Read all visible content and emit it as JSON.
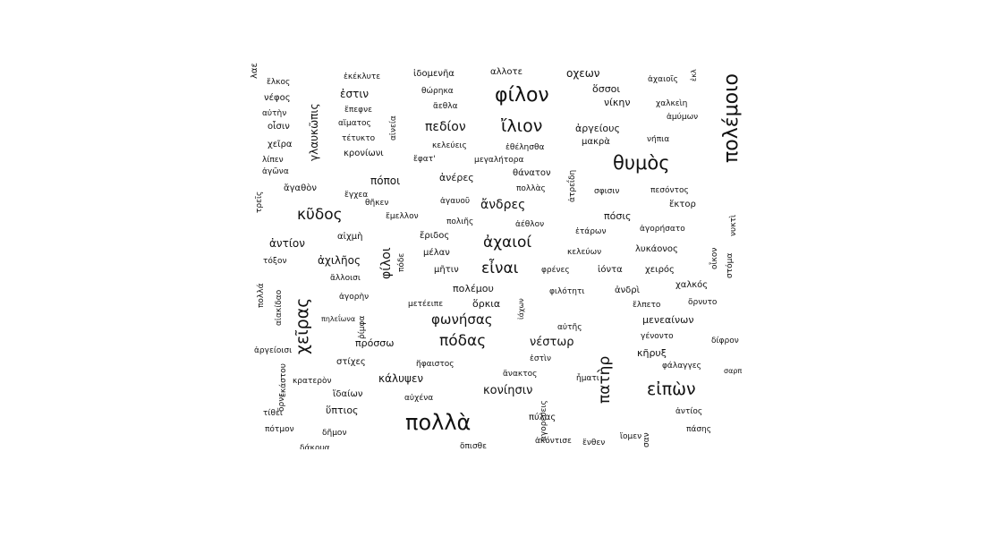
{
  "cloud": {
    "words": [
      {
        "text": "πολέμοιο",
        "vertical": true
      },
      {
        "text": "φίλον",
        "vertical": false
      },
      {
        "text": "ἴλιον",
        "vertical": false
      },
      {
        "text": "θυμὸς",
        "vertical": false
      },
      {
        "text": "κῦδος",
        "vertical": false
      },
      {
        "text": "ἀχαιοί",
        "vertical": false
      },
      {
        "text": "εἶναι",
        "vertical": false
      },
      {
        "text": "ἄνδρες",
        "vertical": false
      },
      {
        "text": "πεδίον",
        "vertical": false
      },
      {
        "text": "πόδας",
        "vertical": false
      },
      {
        "text": "φωνήσας",
        "vertical": false
      },
      {
        "text": "νέστωρ",
        "vertical": false
      },
      {
        "text": "χεῖρας",
        "vertical": true
      },
      {
        "text": "πολλὰ",
        "vertical": false
      },
      {
        "text": "εἰπὼν",
        "vertical": false
      },
      {
        "text": "πατὴρ",
        "vertical": true
      },
      {
        "text": "ἔλκος",
        "vertical": false
      },
      {
        "text": "νέφος",
        "vertical": false
      },
      {
        "text": "αὐτὴν",
        "vertical": false
      },
      {
        "text": "οἶσιν",
        "vertical": false
      },
      {
        "text": "χεῖρα",
        "vertical": false
      },
      {
        "text": "λίπεν",
        "vertical": false
      },
      {
        "text": "ἀγῶνα",
        "vertical": false
      },
      {
        "text": "γλαυκῶπις",
        "vertical": true
      },
      {
        "text": "ἐκέκλυτε",
        "vertical": false
      },
      {
        "text": "ἐστιν",
        "vertical": false
      },
      {
        "text": "ἔπεφνε",
        "vertical": false
      },
      {
        "text": "αἵματος",
        "vertical": false
      },
      {
        "text": "τέτυκτο",
        "vertical": false
      },
      {
        "text": "κρονίωνι",
        "vertical": false
      },
      {
        "text": "αἰνεία",
        "vertical": true
      },
      {
        "text": "ἰδομενῆα",
        "vertical": false
      },
      {
        "text": "θώρηκα",
        "vertical": false
      },
      {
        "text": "ἄεθλα",
        "vertical": false
      },
      {
        "text": "κελεύεις",
        "vertical": false
      },
      {
        "text": "ἔφατ'",
        "vertical": false
      },
      {
        "text": "αλλοτε",
        "vertical": false
      },
      {
        "text": "ἐθέλησθα",
        "vertical": false
      },
      {
        "text": "μεγαλήτορα",
        "vertical": false
      },
      {
        "text": "οχεων",
        "vertical": false
      },
      {
        "text": "ὅσσοι",
        "vertical": false
      },
      {
        "text": "νίκην",
        "vertical": false
      },
      {
        "text": "ἀργείους",
        "vertical": false
      },
      {
        "text": "μακρὰ",
        "vertical": false
      },
      {
        "text": "ἀχαιοῖς",
        "vertical": false
      },
      {
        "text": "ἐκλ",
        "vertical": true
      },
      {
        "text": "χαλκεὶη",
        "vertical": false
      },
      {
        "text": "ἀμύμων",
        "vertical": false
      },
      {
        "text": "νήπια",
        "vertical": false
      },
      {
        "text": "τρεῖς",
        "vertical": true
      },
      {
        "text": "ἄγαθὸν",
        "vertical": false
      },
      {
        "text": "πόποι",
        "vertical": false
      },
      {
        "text": "ἔγχεα",
        "vertical": false
      },
      {
        "text": "θῆκεν",
        "vertical": false
      },
      {
        "text": "ἔμελλον",
        "vertical": false
      },
      {
        "text": "ἀνέρες",
        "vertical": false
      },
      {
        "text": "ἀγαυοῦ",
        "vertical": false
      },
      {
        "text": "πολιῆς",
        "vertical": false
      },
      {
        "text": "θάνατον",
        "vertical": false
      },
      {
        "text": "πολλὰς",
        "vertical": false
      },
      {
        "text": "ἀτρεΐδη",
        "vertical": true
      },
      {
        "text": "σφισιν",
        "vertical": false
      },
      {
        "text": "πεσόντος",
        "vertical": false
      },
      {
        "text": "ἕκτορ",
        "vertical": false
      },
      {
        "text": "ἀέθλον",
        "vertical": false
      },
      {
        "text": "πόσις",
        "vertical": false
      },
      {
        "text": "νυκτὶ",
        "vertical": true
      },
      {
        "text": "ἀντίον",
        "vertical": false
      },
      {
        "text": "αἰχμὴ",
        "vertical": false
      },
      {
        "text": "ἔριδος",
        "vertical": false
      },
      {
        "text": "ἑτάρων",
        "vertical": false
      },
      {
        "text": "ἀγορήσατο",
        "vertical": false
      },
      {
        "text": "τόξον",
        "vertical": false
      },
      {
        "text": "ἀχιλῆος",
        "vertical": false
      },
      {
        "text": "φίλοι",
        "vertical": true
      },
      {
        "text": "πόδε",
        "vertical": true
      },
      {
        "text": "μέλαν",
        "vertical": false
      },
      {
        "text": "κελεύων",
        "vertical": false
      },
      {
        "text": "λυκάονος",
        "vertical": false
      },
      {
        "text": "οἶκον",
        "vertical": true
      },
      {
        "text": "στόμα",
        "vertical": true
      },
      {
        "text": "ἄλλοισι",
        "vertical": false
      },
      {
        "text": "μῆτιν",
        "vertical": false
      },
      {
        "text": "φρένες",
        "vertical": false
      },
      {
        "text": "ἰόντα",
        "vertical": false
      },
      {
        "text": "χειρός",
        "vertical": false
      },
      {
        "text": "χαλκός",
        "vertical": false
      },
      {
        "text": "πολλά",
        "vertical": true
      },
      {
        "text": "αἰακίδαο",
        "vertical": true
      },
      {
        "text": "ἀγορὴν",
        "vertical": false
      },
      {
        "text": "πολέμου",
        "vertical": false
      },
      {
        "text": "φιλότητι",
        "vertical": false
      },
      {
        "text": "ἀνδρὶ",
        "vertical": false
      },
      {
        "text": "ὄρνυτο",
        "vertical": false
      },
      {
        "text": "μετέειπε",
        "vertical": false
      },
      {
        "text": "ὅρκια",
        "vertical": false
      },
      {
        "text": "ἰάχων",
        "vertical": true
      },
      {
        "text": "ἔλπετο",
        "vertical": false
      },
      {
        "text": "μενεαίνων",
        "vertical": false
      },
      {
        "text": "πηλεΐωνα",
        "vertical": false
      },
      {
        "text": "ῥίμφα",
        "vertical": true
      },
      {
        "text": "αὐτῆς",
        "vertical": false
      },
      {
        "text": "γένοντο",
        "vertical": false
      },
      {
        "text": "πρόσσω",
        "vertical": false
      },
      {
        "text": "δίφρον",
        "vertical": false
      },
      {
        "text": "ἐστὶν",
        "vertical": false
      },
      {
        "text": "κῆρυξ",
        "vertical": false
      },
      {
        "text": "ἀργείοισι",
        "vertical": false
      },
      {
        "text": "ἑκάστου",
        "vertical": true
      },
      {
        "text": "στίχες",
        "vertical": false
      },
      {
        "text": "ἥφαιστος",
        "vertical": false
      },
      {
        "text": "φάλαγγες",
        "vertical": false
      },
      {
        "text": "κρατερὸν",
        "vertical": false
      },
      {
        "text": "κάλυψεν",
        "vertical": false
      },
      {
        "text": "ἄνακτος",
        "vertical": false
      },
      {
        "text": "σαρπηδόνα",
        "vertical": false
      },
      {
        "text": "ὄρνε",
        "vertical": true
      },
      {
        "text": "ἴδαίων",
        "vertical": false
      },
      {
        "text": "αὐχένα",
        "vertical": false
      },
      {
        "text": "κονίησιν",
        "vertical": false
      },
      {
        "text": "ἦματι",
        "vertical": false
      },
      {
        "text": "ἀγορεύεις",
        "vertical": true
      },
      {
        "text": "τίθει",
        "vertical": false
      },
      {
        "text": "ὕπτιος",
        "vertical": false
      },
      {
        "text": "πύλας",
        "vertical": false
      },
      {
        "text": "ἀντίος",
        "vertical": false
      },
      {
        "text": "πότμον",
        "vertical": false
      },
      {
        "text": "δῆμον",
        "vertical": false
      },
      {
        "text": "πάσης",
        "vertical": false
      },
      {
        "text": "δάκρυα",
        "vertical": false
      },
      {
        "text": "ὄπισθε",
        "vertical": false
      },
      {
        "text": "ἀκόντισε",
        "vertical": false
      },
      {
        "text": "ἔνθεν",
        "vertical": false
      },
      {
        "text": "ἴομεν",
        "vertical": false
      },
      {
        "text": "σαν",
        "vertical": true
      },
      {
        "text": "λαε",
        "vertical": true
      }
    ]
  }
}
